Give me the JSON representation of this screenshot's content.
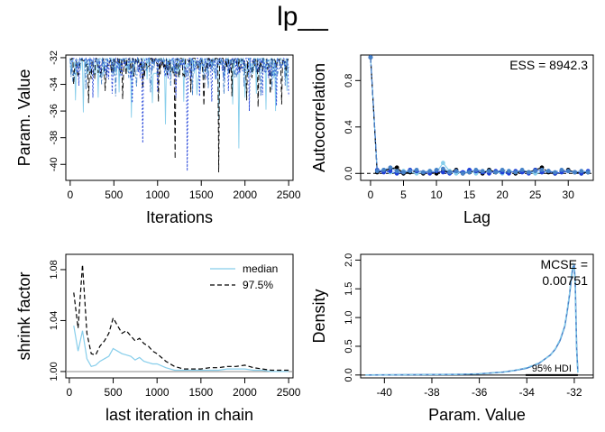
{
  "title": "lp__",
  "colors": {
    "chain_1": "#87CEEB",
    "chain_2": "#000000",
    "chain_3": "#1E3FD8",
    "chain_4": "#4682C8",
    "median": "#87CEEB",
    "quantile": "#000000",
    "density": "#4682C8"
  },
  "chart_data": [
    {
      "id": "trace",
      "type": "line",
      "xlabel": "Iterations",
      "ylabel": "Param. Value",
      "xlim": [
        -50,
        2550
      ],
      "ylim": [
        -41.2,
        -31.8
      ],
      "x_ticks": [
        0,
        500,
        1000,
        1500,
        2000,
        2500
      ],
      "x_tick_labels": [
        "0",
        "500",
        "1000",
        "1500",
        "2000",
        "2500"
      ],
      "y_ticks": [
        -40,
        -38,
        -36,
        -34,
        -32
      ],
      "y_tick_labels": [
        "-40",
        "-38",
        "-36",
        "-34",
        "-32"
      ],
      "grid": false,
      "series": [
        {
          "color_key": "chain_1",
          "dash": "solid",
          "spikes": [
            [
              60,
              -35.2
            ],
            [
              150,
              -36.1
            ],
            [
              320,
              -35.0
            ],
            [
              560,
              -34.6
            ],
            [
              700,
              -36.5
            ],
            [
              940,
              -35.4
            ],
            [
              1090,
              -37.0
            ],
            [
              1300,
              -35.3
            ],
            [
              1450,
              -34.8
            ],
            [
              1700,
              -36.6
            ],
            [
              1860,
              -35.5
            ],
            [
              1925,
              -38.8
            ],
            [
              2000,
              -35.0
            ],
            [
              2130,
              -34.7
            ],
            [
              2240,
              -35.9
            ],
            [
              2350,
              -36.0
            ],
            [
              2480,
              -34.5
            ]
          ]
        },
        {
          "color_key": "chain_2",
          "dash": "6,3",
          "spikes": [
            [
              40,
              -34.0
            ],
            [
              210,
              -35.4
            ],
            [
              400,
              -34.5
            ],
            [
              600,
              -35.1
            ],
            [
              830,
              -34.3
            ],
            [
              1010,
              -35.3
            ],
            [
              1200,
              -39.6
            ],
            [
              1380,
              -34.6
            ],
            [
              1530,
              -35.6
            ],
            [
              1700,
              -40.6
            ],
            [
              1850,
              -34.9
            ],
            [
              2020,
              -35.2
            ],
            [
              2150,
              -35.7
            ],
            [
              2290,
              -34.7
            ],
            [
              2420,
              -35.5
            ]
          ]
        },
        {
          "color_key": "chain_3",
          "dash": "2,2",
          "spikes": [
            [
              100,
              -34.1
            ],
            [
              260,
              -35.0
            ],
            [
              480,
              -34.7
            ],
            [
              710,
              -35.4
            ],
            [
              830,
              -38.4
            ],
            [
              1000,
              -34.6
            ],
            [
              1210,
              -35.0
            ],
            [
              1335,
              -40.5
            ],
            [
              1480,
              -34.9
            ],
            [
              1620,
              -35.3
            ],
            [
              1810,
              -34.5
            ],
            [
              2050,
              -36.0
            ],
            [
              2200,
              -34.8
            ],
            [
              2360,
              -35.6
            ],
            [
              2500,
              -34.9
            ]
          ]
        },
        {
          "color_key": "chain_4",
          "dash": "6,2,2,2",
          "spikes": [
            [
              30,
              -33.8
            ],
            [
              180,
              -34.4
            ],
            [
              360,
              -34.0
            ],
            [
              520,
              -34.9
            ],
            [
              760,
              -34.2
            ],
            [
              920,
              -34.6
            ],
            [
              1150,
              -34.1
            ],
            [
              1400,
              -34.8
            ],
            [
              1580,
              -34.3
            ],
            [
              1760,
              -34.7
            ],
            [
              1990,
              -34.2
            ],
            [
              2180,
              -34.9
            ],
            [
              2310,
              -34.4
            ],
            [
              2460,
              -34.1
            ]
          ]
        }
      ]
    },
    {
      "id": "autocorrelation",
      "type": "line",
      "xlabel": "Lag",
      "ylabel": "Autocorrelation",
      "xlim": [
        -1.5,
        33.8
      ],
      "ylim": [
        -0.06,
        1.02
      ],
      "x_ticks": [
        0,
        5,
        10,
        15,
        20,
        25,
        30
      ],
      "x_tick_labels": [
        "0",
        "5",
        "10",
        "15",
        "20",
        "25",
        "30"
      ],
      "y_ticks": [
        0.0,
        0.4,
        0.8
      ],
      "y_tick_labels": [
        "0.0",
        "0.4",
        "0.8"
      ],
      "annotation": "ESS = 8942.3",
      "reference_line": 0,
      "lags": [
        0,
        1,
        2,
        3,
        4,
        5,
        6,
        7,
        8,
        9,
        10,
        11,
        12,
        13,
        14,
        15,
        16,
        17,
        18,
        19,
        20,
        21,
        22,
        23,
        24,
        25,
        26,
        27,
        28,
        29,
        30,
        31,
        32,
        33
      ],
      "series": [
        {
          "color_key": "chain_1",
          "dash": "solid",
          "values": [
            1.0,
            0.02,
            0.03,
            0.01,
            0.0,
            0.02,
            0.01,
            0.0,
            0.01,
            0.02,
            0.01,
            0.09,
            0.02,
            0.0,
            0.01,
            0.02,
            0.0,
            0.01,
            0.03,
            0.01,
            0.0,
            0.02,
            0.01,
            0.02,
            0.01,
            0.0,
            0.01,
            0.02,
            0.0,
            0.01,
            0.02,
            0.01,
            0.0,
            0.01
          ]
        },
        {
          "color_key": "chain_2",
          "dash": "6,3",
          "values": [
            1.0,
            0.01,
            0.02,
            0.04,
            0.05,
            0.0,
            0.01,
            0.02,
            0.0,
            0.01,
            0.0,
            0.02,
            0.01,
            0.03,
            0.0,
            0.01,
            0.02,
            0.0,
            0.03,
            0.01,
            0.02,
            0.01,
            0.0,
            0.02,
            0.01,
            0.03,
            0.05,
            0.01,
            0.0,
            0.02,
            0.03,
            0.01,
            0.0,
            0.01
          ]
        },
        {
          "color_key": "chain_3",
          "dash": "2,2",
          "values": [
            1.0,
            0.03,
            0.01,
            0.02,
            0.0,
            0.01,
            0.03,
            0.02,
            0.01,
            0.0,
            0.02,
            0.01,
            0.0,
            0.02,
            0.01,
            0.03,
            0.02,
            0.01,
            0.0,
            0.02,
            0.01,
            0.0,
            0.02,
            0.01,
            0.0,
            0.03,
            0.01,
            0.02,
            0.0,
            0.01,
            0.02,
            0.01,
            0.0,
            0.02
          ]
        },
        {
          "color_key": "chain_4",
          "dash": "6,2,2,2",
          "values": [
            1.0,
            0.02,
            0.03,
            0.05,
            0.02,
            0.01,
            0.02,
            0.03,
            0.01,
            0.02,
            0.03,
            0.04,
            0.01,
            0.02,
            0.0,
            0.01,
            0.03,
            0.02,
            0.02,
            0.01,
            0.03,
            0.02,
            0.01,
            0.03,
            0.01,
            0.02,
            0.03,
            0.02,
            0.01,
            0.03,
            0.02,
            0.01,
            0.02,
            0.01
          ]
        }
      ]
    },
    {
      "id": "shrink",
      "type": "line",
      "xlabel": "last iteration in chain",
      "ylabel": "shrink factor",
      "xlim": [
        -40,
        2550
      ],
      "ylim": [
        0.995,
        1.092
      ],
      "x_ticks": [
        0,
        500,
        1000,
        1500,
        2000,
        2500
      ],
      "x_tick_labels": [
        "0",
        "500",
        "1000",
        "1500",
        "2000",
        "2500"
      ],
      "y_ticks": [
        1.0,
        1.04,
        1.08
      ],
      "y_tick_labels": [
        "1.00",
        "1.04",
        "1.08"
      ],
      "reference_line": 1.0,
      "legend": {
        "position": "top-right",
        "entries": [
          "median",
          "97.5%"
        ]
      },
      "x": [
        50,
        100,
        150,
        200,
        250,
        300,
        350,
        400,
        450,
        500,
        550,
        600,
        650,
        700,
        750,
        800,
        850,
        900,
        950,
        1000,
        1100,
        1200,
        1300,
        1400,
        1500,
        1600,
        1700,
        1800,
        1900,
        2000,
        2100,
        2200,
        2300,
        2400,
        2500
      ],
      "series": [
        {
          "name": "median",
          "color_key": "median",
          "dash": "solid",
          "values": [
            1.036,
            1.016,
            1.032,
            1.01,
            1.004,
            1.005,
            1.008,
            1.01,
            1.012,
            1.018,
            1.016,
            1.014,
            1.013,
            1.012,
            1.009,
            1.011,
            1.008,
            1.007,
            1.006,
            1.006,
            1.003,
            1.001,
            1.001,
            1.001,
            1.001,
            1.001,
            1.001,
            1.002,
            1.002,
            1.002,
            1.001,
            1.001,
            1.0,
            1.0,
            1.0
          ]
        },
        {
          "name": "97.5%",
          "color_key": "quantile",
          "dash": "5,3",
          "values": [
            1.062,
            1.034,
            1.084,
            1.03,
            1.014,
            1.013,
            1.02,
            1.024,
            1.03,
            1.042,
            1.036,
            1.03,
            1.032,
            1.028,
            1.024,
            1.026,
            1.022,
            1.02,
            1.016,
            1.014,
            1.008,
            1.004,
            1.002,
            1.002,
            1.002,
            1.003,
            1.003,
            1.004,
            1.004,
            1.005,
            1.003,
            1.002,
            1.001,
            1.001,
            1.001
          ]
        }
      ]
    },
    {
      "id": "density",
      "type": "area",
      "xlabel": "Param. Value",
      "ylabel": "Density",
      "xlim": [
        -41.0,
        -31.2
      ],
      "ylim": [
        -0.05,
        2.1
      ],
      "x_ticks": [
        -40,
        -38,
        -36,
        -34,
        -32
      ],
      "x_tick_labels": [
        "-40",
        "-38",
        "-36",
        "-34",
        "-32"
      ],
      "y_ticks": [
        0.0,
        0.5,
        1.0,
        1.5,
        2.0
      ],
      "y_tick_labels": [
        "0.0",
        "0.5",
        "1.0",
        "1.5",
        "2.0"
      ],
      "annotation_line1": "MCSE =",
      "annotation_line2": "0.00751",
      "hdi_label": "95% HDI",
      "hdi": [
        -34.05,
        -31.85
      ],
      "x": [
        -40.8,
        -37.0,
        -36.0,
        -35.0,
        -34.5,
        -34.0,
        -33.5,
        -33.0,
        -32.8,
        -32.6,
        -32.4,
        -32.3,
        -32.2,
        -32.12,
        -32.06,
        -32.0,
        -31.96,
        -31.93,
        -31.9,
        -31.85
      ],
      "series": [
        {
          "color_key": "density",
          "dash": "solid",
          "values": [
            0.0,
            0.01,
            0.02,
            0.05,
            0.08,
            0.12,
            0.2,
            0.35,
            0.45,
            0.6,
            0.85,
            1.1,
            1.4,
            1.7,
            1.88,
            1.9,
            1.6,
            1.0,
            0.45,
            0.05
          ]
        },
        {
          "color_key": "chain_1",
          "dash": "4,3",
          "values": [
            0.0,
            0.01,
            0.02,
            0.05,
            0.08,
            0.13,
            0.21,
            0.34,
            0.46,
            0.62,
            0.87,
            1.12,
            1.42,
            1.75,
            1.95,
            1.85,
            1.5,
            0.9,
            0.4,
            0.04
          ]
        }
      ]
    }
  ]
}
